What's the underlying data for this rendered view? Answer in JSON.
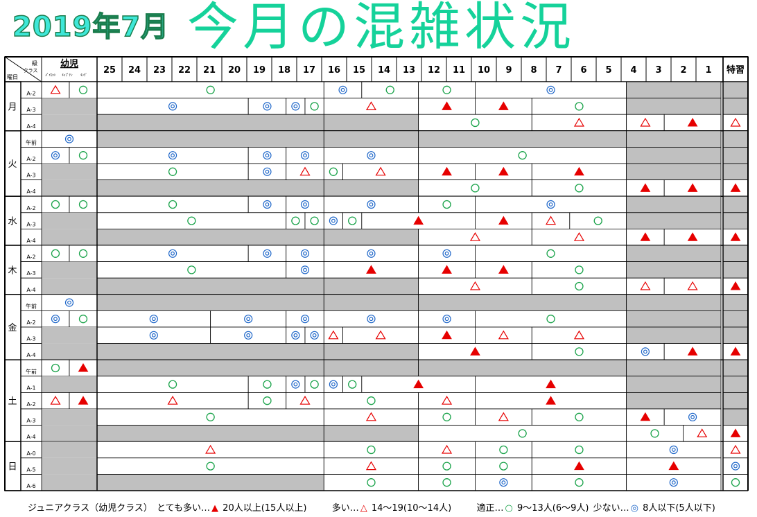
{
  "title": {
    "year_month": "2019年7月",
    "main": "今月の混雑状況"
  },
  "header": {
    "corner_top": "級",
    "corner_day": "曜日",
    "corner_class": "クラス",
    "infant_label": "幼児",
    "infant_sub": [
      "ﾊﾟｲﾛｯﾄ",
      "ｷｬﾌﾟﾃﾝ",
      "ｷﾝｸﾞ"
    ],
    "levels": [
      "25",
      "24",
      "23",
      "22",
      "21",
      "20",
      "19",
      "18",
      "17",
      "16",
      "15",
      "14",
      "13",
      "12",
      "11",
      "10",
      "9",
      "8",
      "7",
      "6",
      "5",
      "4",
      "3",
      "2",
      "1"
    ],
    "special": "特習"
  },
  "days": [
    {
      "day": "月",
      "rows": [
        {
          "cls": "A-2",
          "inf": [
            "tri-o",
            "circ"
          ],
          "segs": [
            [
              3,
              14,
              "circ"
            ],
            [
              15,
              16,
              "dbl"
            ],
            [
              17,
              19,
              "circ"
            ],
            [
              20,
              22,
              "circ"
            ],
            [
              23,
              30,
              "dbl"
            ],
            [
              31,
              35,
              "gray"
            ]
          ],
          "sp": "gray"
        },
        {
          "cls": "A-3",
          "inf": "gray",
          "segs": [
            [
              3,
              10,
              "dbl"
            ],
            [
              11,
              12,
              "dbl"
            ],
            [
              13,
              13,
              "dbl"
            ],
            [
              14,
              14,
              "circ"
            ],
            [
              15,
              19,
              "tri-o"
            ],
            [
              20,
              22,
              "tri-f"
            ],
            [
              23,
              25,
              "tri-f"
            ],
            [
              26,
              30,
              "circ"
            ],
            [
              31,
              35,
              "gray"
            ]
          ],
          "sp": "gray"
        },
        {
          "cls": "A-4",
          "inf": "gray",
          "segs": [
            [
              3,
              14,
              "gray"
            ],
            [
              15,
              19,
              "gray"
            ],
            [
              20,
              25,
              "circ"
            ],
            [
              26,
              30,
              "tri-o"
            ],
            [
              31,
              32,
              "tri-o"
            ],
            [
              33,
              35,
              "tri-f"
            ]
          ],
          "sp": "tri-o"
        }
      ]
    },
    {
      "day": "火",
      "rows": [
        {
          "cls": "午前",
          "inf": [
            null,
            "dbl"
          ],
          "infspan": true,
          "segs": [
            [
              3,
              14,
              "gray"
            ],
            [
              15,
              19,
              "gray"
            ],
            [
              20,
              30,
              "gray"
            ],
            [
              31,
              35,
              "gray"
            ]
          ],
          "sp": "gray"
        },
        {
          "cls": "A-2",
          "inf": [
            "dbl",
            "circ"
          ],
          "segs": [
            [
              3,
              10,
              "dbl"
            ],
            [
              11,
              12,
              "dbl"
            ],
            [
              13,
              14,
              "dbl"
            ],
            [
              15,
              19,
              "dbl"
            ],
            [
              20,
              30,
              "circ"
            ],
            [
              31,
              35,
              "gray"
            ]
          ],
          "sp": "gray"
        },
        {
          "cls": "A-3",
          "inf": "gray",
          "segs": [
            [
              3,
              10,
              "circ"
            ],
            [
              11,
              12,
              "dbl"
            ],
            [
              13,
              14,
              "tri-o"
            ],
            [
              15,
              15,
              "circ"
            ],
            [
              16,
              19,
              "tri-o"
            ],
            [
              20,
              22,
              "tri-f"
            ],
            [
              23,
              25,
              "tri-f"
            ],
            [
              26,
              30,
              "tri-f"
            ],
            [
              31,
              35,
              "gray"
            ]
          ],
          "sp": "gray"
        },
        {
          "cls": "A-4",
          "inf": "gray",
          "segs": [
            [
              3,
              14,
              "gray"
            ],
            [
              15,
              19,
              "gray"
            ],
            [
              20,
              25,
              "circ"
            ],
            [
              26,
              30,
              "circ"
            ],
            [
              31,
              32,
              "tri-f"
            ],
            [
              33,
              35,
              "tri-f"
            ]
          ],
          "sp": "tri-f"
        }
      ]
    },
    {
      "day": "水",
      "rows": [
        {
          "cls": "A-2",
          "inf": [
            "circ",
            "circ"
          ],
          "segs": [
            [
              3,
              10,
              "circ"
            ],
            [
              11,
              12,
              "dbl"
            ],
            [
              13,
              14,
              "dbl"
            ],
            [
              15,
              19,
              "dbl"
            ],
            [
              20,
              22,
              "circ"
            ],
            [
              23,
              30,
              "dbl"
            ],
            [
              31,
              35,
              "gray"
            ]
          ],
          "sp": "gray"
        },
        {
          "cls": "A-3",
          "inf": "gray",
          "segs": [
            [
              3,
              12,
              "circ"
            ],
            [
              13,
              13,
              "circ"
            ],
            [
              14,
              14,
              "circ"
            ],
            [
              15,
              15,
              "dbl"
            ],
            [
              16,
              16,
              "circ"
            ],
            [
              17,
              22,
              "tri-f"
            ],
            [
              23,
              25,
              "tri-f"
            ],
            [
              26,
              27,
              "tri-o"
            ],
            [
              28,
              30,
              "circ"
            ],
            [
              31,
              35,
              "gray"
            ]
          ],
          "sp": "gray"
        },
        {
          "cls": "A-4",
          "inf": "gray",
          "segs": [
            [
              3,
              14,
              "gray"
            ],
            [
              15,
              19,
              "gray"
            ],
            [
              20,
              25,
              "tri-o"
            ],
            [
              26,
              30,
              "tri-o"
            ],
            [
              31,
              32,
              "tri-f"
            ],
            [
              33,
              35,
              "tri-f"
            ]
          ],
          "sp": "tri-f"
        }
      ]
    },
    {
      "day": "木",
      "rows": [
        {
          "cls": "A-2",
          "inf": [
            "circ",
            "circ"
          ],
          "segs": [
            [
              3,
              10,
              "dbl"
            ],
            [
              11,
              12,
              "dbl"
            ],
            [
              13,
              14,
              "dbl"
            ],
            [
              15,
              19,
              "dbl"
            ],
            [
              20,
              22,
              "dbl"
            ],
            [
              23,
              30,
              "circ"
            ],
            [
              31,
              35,
              "gray"
            ]
          ],
          "sp": "gray"
        },
        {
          "cls": "A-3",
          "inf": "gray",
          "segs": [
            [
              3,
              12,
              "circ"
            ],
            [
              13,
              14,
              "dbl"
            ],
            [
              15,
              19,
              "tri-f"
            ],
            [
              20,
              22,
              "tri-f"
            ],
            [
              23,
              25,
              "tri-f"
            ],
            [
              26,
              30,
              "circ"
            ],
            [
              31,
              35,
              "gray"
            ]
          ],
          "sp": "gray"
        },
        {
          "cls": "A-4",
          "inf": "gray",
          "segs": [
            [
              3,
              14,
              "gray"
            ],
            [
              15,
              19,
              "gray"
            ],
            [
              20,
              25,
              "tri-o"
            ],
            [
              26,
              30,
              "circ"
            ],
            [
              31,
              32,
              "tri-o"
            ],
            [
              33,
              35,
              "tri-o"
            ]
          ],
          "sp": "tri-f"
        }
      ]
    },
    {
      "day": "金",
      "rows": [
        {
          "cls": "午前",
          "inf": [
            null,
            "dbl"
          ],
          "infspan": true,
          "segs": [
            [
              3,
              14,
              "gray"
            ],
            [
              15,
              19,
              "gray"
            ],
            [
              20,
              30,
              "gray"
            ],
            [
              31,
              35,
              "gray"
            ]
          ],
          "sp": "gray"
        },
        {
          "cls": "A-2",
          "inf": [
            "dbl",
            "circ"
          ],
          "segs": [
            [
              3,
              8,
              "dbl"
            ],
            [
              9,
              12,
              "dbl"
            ],
            [
              13,
              14,
              "dbl"
            ],
            [
              15,
              19,
              "dbl"
            ],
            [
              20,
              22,
              "dbl"
            ],
            [
              23,
              30,
              "circ"
            ],
            [
              31,
              35,
              "gray"
            ]
          ],
          "sp": "gray"
        },
        {
          "cls": "A-3",
          "inf": "gray",
          "segs": [
            [
              3,
              8,
              "dbl"
            ],
            [
              9,
              12,
              "dbl"
            ],
            [
              13,
              13,
              "dbl"
            ],
            [
              14,
              14,
              "dbl"
            ],
            [
              15,
              15,
              "tri-o"
            ],
            [
              16,
              19,
              "tri-o"
            ],
            [
              20,
              22,
              "tri-f"
            ],
            [
              23,
              25,
              "tri-o"
            ],
            [
              26,
              30,
              "tri-o"
            ],
            [
              31,
              35,
              "gray"
            ]
          ],
          "sp": "gray"
        },
        {
          "cls": "A-4",
          "inf": "gray",
          "segs": [
            [
              3,
              14,
              "gray"
            ],
            [
              15,
              19,
              "gray"
            ],
            [
              20,
              25,
              "tri-f"
            ],
            [
              26,
              30,
              "circ"
            ],
            [
              31,
              32,
              "dbl"
            ],
            [
              33,
              35,
              "tri-f"
            ]
          ],
          "sp": "tri-f"
        }
      ]
    },
    {
      "day": "土",
      "rows": [
        {
          "cls": "午前",
          "inf": [
            "circ",
            "tri-f"
          ],
          "segs": [
            [
              3,
              14,
              "gray"
            ],
            [
              15,
              19,
              "gray"
            ],
            [
              20,
              30,
              "gray"
            ],
            [
              31,
              35,
              "gray"
            ]
          ],
          "sp": "gray"
        },
        {
          "cls": "A-1",
          "inf": "gray",
          "segs": [
            [
              3,
              10,
              "circ"
            ],
            [
              11,
              12,
              "circ"
            ],
            [
              13,
              13,
              "dbl"
            ],
            [
              14,
              14,
              "circ"
            ],
            [
              15,
              15,
              "dbl"
            ],
            [
              16,
              16,
              "circ"
            ],
            [
              17,
              22,
              "tri-f"
            ],
            [
              23,
              30,
              "tri-f"
            ],
            [
              31,
              35,
              "gray"
            ]
          ],
          "sp": "gray"
        },
        {
          "cls": "A-2",
          "inf": [
            "tri-o",
            "tri-f"
          ],
          "segs": [
            [
              3,
              10,
              "tri-o"
            ],
            [
              11,
              12,
              "circ"
            ],
            [
              13,
              14,
              "tri-o"
            ],
            [
              15,
              19,
              "circ"
            ],
            [
              20,
              22,
              "tri-o"
            ],
            [
              23,
              30,
              "tri-f"
            ],
            [
              31,
              35,
              "gray"
            ]
          ],
          "sp": "gray"
        },
        {
          "cls": "A-3",
          "inf": "gray",
          "segs": [
            [
              3,
              14,
              "circ"
            ],
            [
              15,
              19,
              "tri-o"
            ],
            [
              20,
              22,
              "circ"
            ],
            [
              23,
              25,
              "tri-o"
            ],
            [
              26,
              30,
              "circ"
            ],
            [
              31,
              32,
              "tri-f"
            ],
            [
              33,
              35,
              "dbl"
            ]
          ],
          "sp": "gray"
        },
        {
          "cls": "A-4",
          "inf": "gray",
          "segs": [
            [
              3,
              14,
              "gray"
            ],
            [
              15,
              19,
              "gray"
            ],
            [
              20,
              30,
              "circ"
            ],
            [
              31,
              33,
              "circ"
            ],
            [
              34,
              35,
              "tri-o"
            ]
          ],
          "sp": "tri-f"
        }
      ]
    },
    {
      "day": "日",
      "rows": [
        {
          "cls": "A-0",
          "inf": "gray",
          "segs": [
            [
              3,
              14,
              "tri-o"
            ],
            [
              15,
              19,
              "circ"
            ],
            [
              20,
              22,
              "tri-o"
            ],
            [
              23,
              25,
              "circ"
            ],
            [
              26,
              30,
              "circ"
            ],
            [
              31,
              35,
              "dbl"
            ]
          ],
          "sp": "tri-o"
        },
        {
          "cls": "A-5",
          "inf": "gray",
          "segs": [
            [
              3,
              14,
              "circ"
            ],
            [
              15,
              19,
              "tri-o"
            ],
            [
              20,
              22,
              "circ"
            ],
            [
              23,
              25,
              "circ"
            ],
            [
              26,
              30,
              "tri-f"
            ],
            [
              31,
              35,
              "tri-f"
            ]
          ],
          "sp": "dbl"
        },
        {
          "cls": "A-6",
          "inf": "gray",
          "segs": [
            [
              3,
              14,
              "gray"
            ],
            [
              15,
              19,
              "circ"
            ],
            [
              20,
              22,
              "circ"
            ],
            [
              23,
              25,
              "dbl"
            ],
            [
              26,
              30,
              "circ"
            ],
            [
              31,
              35,
              "dbl"
            ]
          ],
          "sp": "circ"
        }
      ]
    }
  ],
  "legend": {
    "intro": "ジュニアクラス（幼児クラス）",
    "very_busy_label": "とても多い…",
    "very_busy_range": "20人以上(15人以上)",
    "busy_label": "多い…",
    "busy_range": "14〜19(10〜14人)",
    "ok_label": "適正…",
    "ok_range": "9〜13人(6〜9人)",
    "few_label": "少ない…",
    "few_range": "8人以下(5人以下)"
  },
  "colors": {
    "gray": "#c0c0c0",
    "red": "#e60000",
    "green": "#1aa34a",
    "blue": "#1f67c9",
    "grid": "#000000"
  }
}
